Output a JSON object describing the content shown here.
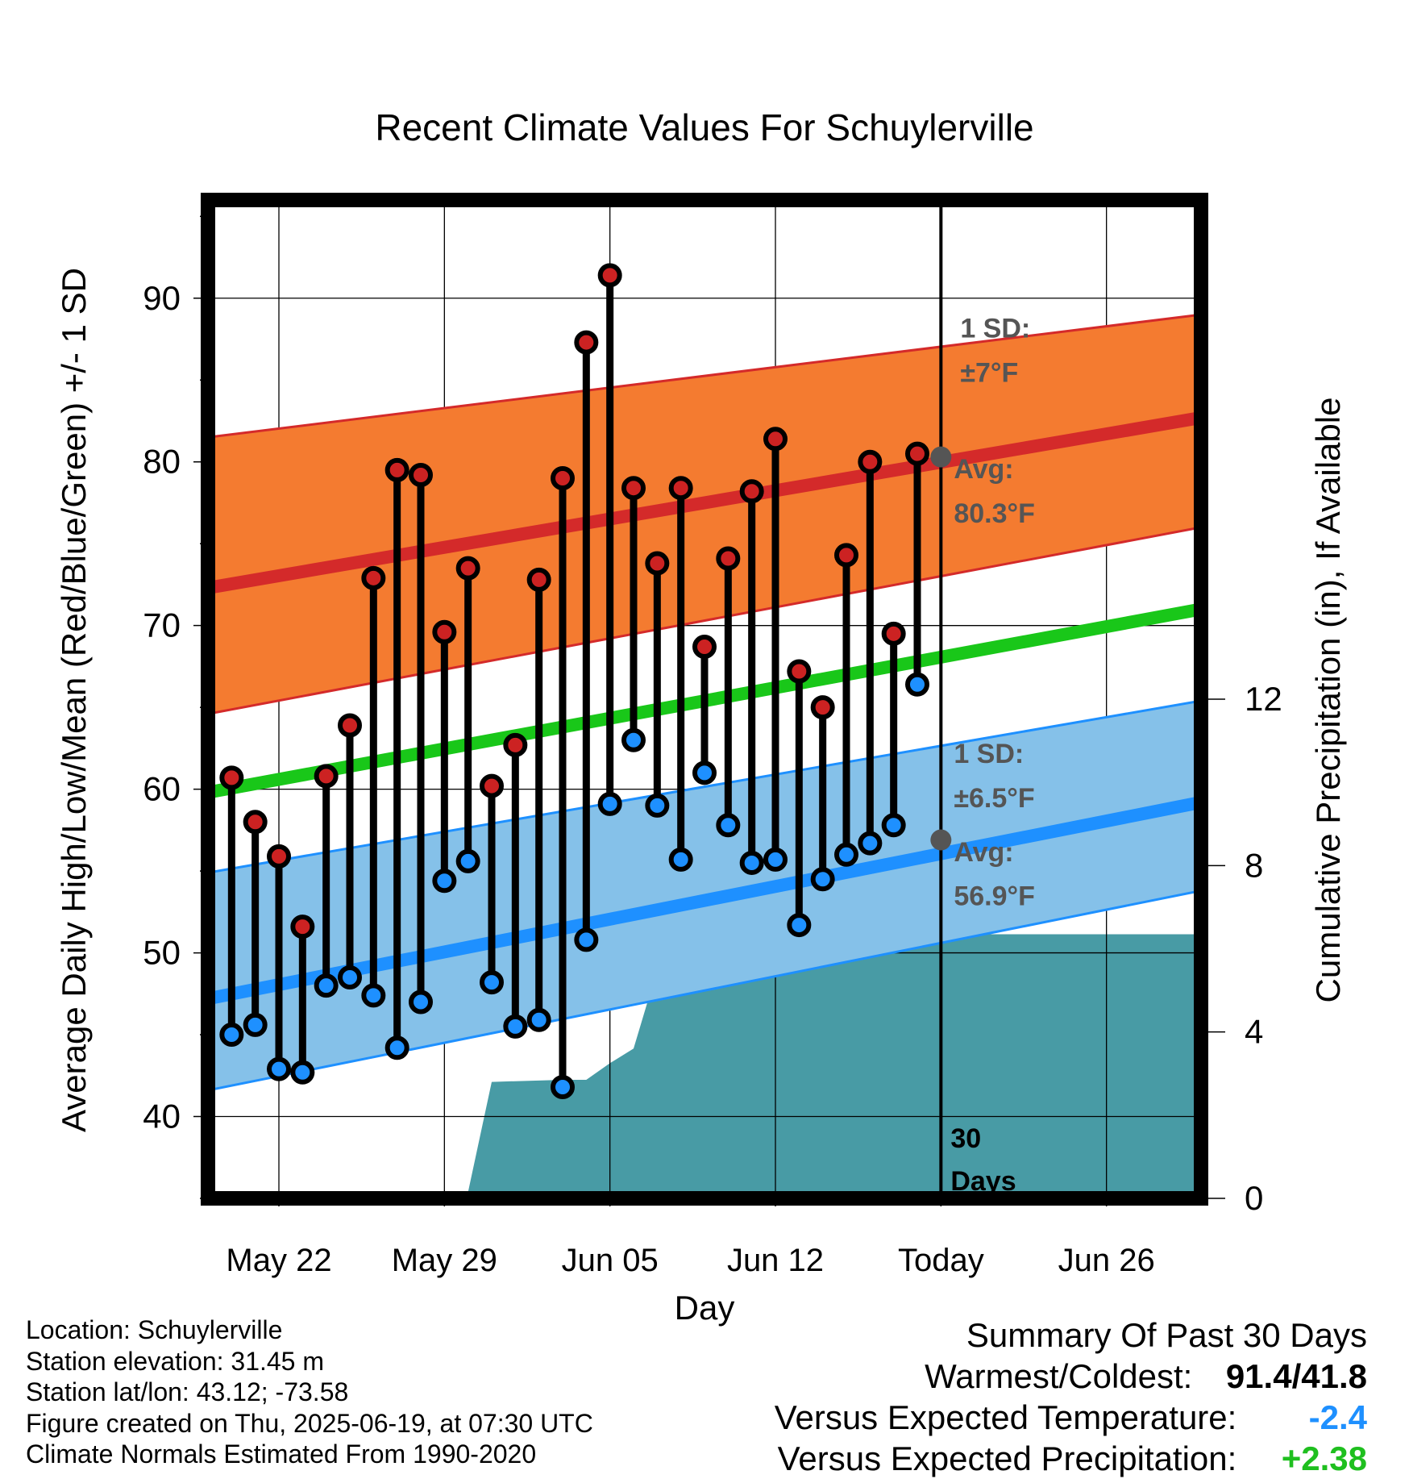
{
  "chart_data": {
    "type": "line",
    "title": "Recent Climate Values For Schuylerville",
    "xlabel": "Day",
    "ylabel": "Average Daily High/Low/Mean (Red/Blue/Green) +/- 1 SD",
    "y2label": "Cumulative Precipitation (in), If Available",
    "xrange": [
      "2025-05-19",
      "2025-06-30"
    ],
    "ylim": [
      35,
      96
    ],
    "y2lim": [
      0,
      24
    ],
    "grid": true,
    "x_ticks": [
      {
        "date": "2025-05-22",
        "label": "May 22"
      },
      {
        "date": "2025-05-29",
        "label": "May 29"
      },
      {
        "date": "2025-06-05",
        "label": "Jun 05"
      },
      {
        "date": "2025-06-12",
        "label": "Jun 12"
      },
      {
        "date": "2025-06-19",
        "label": "Today"
      },
      {
        "date": "2025-06-26",
        "label": "Jun 26"
      }
    ],
    "y_ticks": [
      40,
      50,
      60,
      70,
      80,
      90
    ],
    "y2_ticks": [
      0,
      4,
      8,
      12
    ],
    "colors": {
      "high_band": "#f47b30",
      "high_line": "#d42a2a",
      "low_band": "#85c1e9",
      "low_line": "#1e90ff",
      "mean_line": "#19c719",
      "precip_fill": "#489ba5",
      "high_marker": "#cc2222",
      "low_marker": "#1e90ff",
      "today_marker": "#555555",
      "annotation_text": "#555555"
    },
    "normals": {
      "start": "2025-05-19",
      "end": "2025-06-30",
      "high_avg": [
        72.3,
        82.7
      ],
      "high_plus_sd": [
        81.5,
        89.0
      ],
      "high_minus_sd": [
        64.6,
        76.0
      ],
      "low_avg": [
        47.2,
        59.2
      ],
      "low_plus_sd": [
        54.9,
        65.4
      ],
      "low_minus_sd": [
        41.6,
        53.8
      ],
      "mean_avg": [
        59.8,
        71.0
      ]
    },
    "dates": [
      "2025-05-20",
      "2025-05-21",
      "2025-05-22",
      "2025-05-23",
      "2025-05-24",
      "2025-05-25",
      "2025-05-26",
      "2025-05-27",
      "2025-05-28",
      "2025-05-29",
      "2025-05-30",
      "2025-05-31",
      "2025-06-01",
      "2025-06-02",
      "2025-06-03",
      "2025-06-04",
      "2025-06-05",
      "2025-06-06",
      "2025-06-07",
      "2025-06-08",
      "2025-06-09",
      "2025-06-10",
      "2025-06-11",
      "2025-06-12",
      "2025-06-13",
      "2025-06-14",
      "2025-06-15",
      "2025-06-16",
      "2025-06-17",
      "2025-06-18"
    ],
    "daily_high": [
      60.7,
      58.0,
      55.9,
      51.6,
      60.8,
      63.9,
      72.9,
      79.5,
      79.2,
      69.6,
      73.5,
      60.2,
      62.7,
      72.8,
      79.0,
      87.3,
      91.4,
      78.4,
      73.8,
      78.4,
      68.7,
      74.1,
      78.2,
      81.4,
      67.2,
      65.0,
      74.3,
      80.0,
      69.5,
      80.5
    ],
    "daily_low": [
      45.0,
      45.6,
      42.9,
      42.7,
      48.0,
      48.5,
      47.4,
      44.2,
      47.0,
      54.4,
      55.6,
      48.2,
      45.5,
      45.9,
      41.8,
      50.8,
      59.1,
      63.0,
      59.0,
      55.7,
      61.0,
      57.8,
      55.5,
      55.7,
      51.7,
      54.5,
      56.0,
      56.7,
      57.8,
      66.4
    ],
    "precip": {
      "dates": [
        "2025-05-19",
        "2025-05-22",
        "2025-05-24",
        "2025-05-25",
        "2025-05-30",
        "2025-05-31",
        "2025-06-03",
        "2025-06-04",
        "2025-06-05",
        "2025-06-06",
        "2025-06-07",
        "2025-06-08",
        "2025-06-09",
        "2025-06-10",
        "2025-06-12",
        "2025-06-13",
        "2025-06-14",
        "2025-06-16",
        "2025-06-17",
        "2025-06-18",
        "2025-06-19",
        "2025-06-30"
      ],
      "values": [
        0.0,
        0.0,
        0.12,
        0.15,
        0.15,
        2.8,
        2.85,
        2.85,
        3.25,
        3.6,
        5.5,
        5.5,
        5.85,
        6.1,
        6.1,
        6.1,
        6.2,
        6.2,
        6.3,
        6.35,
        6.35,
        6.35
      ]
    },
    "annotations": {
      "high_sd_label": "1 SD:",
      "high_sd_value": "±7°F",
      "high_avg_label": "Avg:",
      "high_avg_value": "80.3°F",
      "low_sd_label": "1 SD:",
      "low_sd_value": "±6.5°F",
      "low_avg_label": "Avg:",
      "low_avg_value": "56.9°F",
      "today_high": 80.3,
      "today_low": 56.9,
      "period_line1": "30",
      "period_line2": "Days"
    }
  },
  "footer": {
    "location": "Location: Schuylerville",
    "elevation": "Station elevation: 31.45 m",
    "latlon": "Station lat/lon: 43.12; -73.58",
    "created": "Figure created on Thu, 2025-06-19, at 07:30 UTC",
    "normals": "Climate Normals Estimated From 1990-2020"
  },
  "summary": {
    "title": "Summary Of Past 30 Days",
    "warmest_label": "Warmest/Coldest:",
    "warmest_value": "91.4/41.8",
    "temp_label": "Versus Expected Temperature:",
    "temp_value": "-2.4",
    "precip_label": "Versus Expected Precipitation:",
    "precip_value": "+2.38"
  }
}
